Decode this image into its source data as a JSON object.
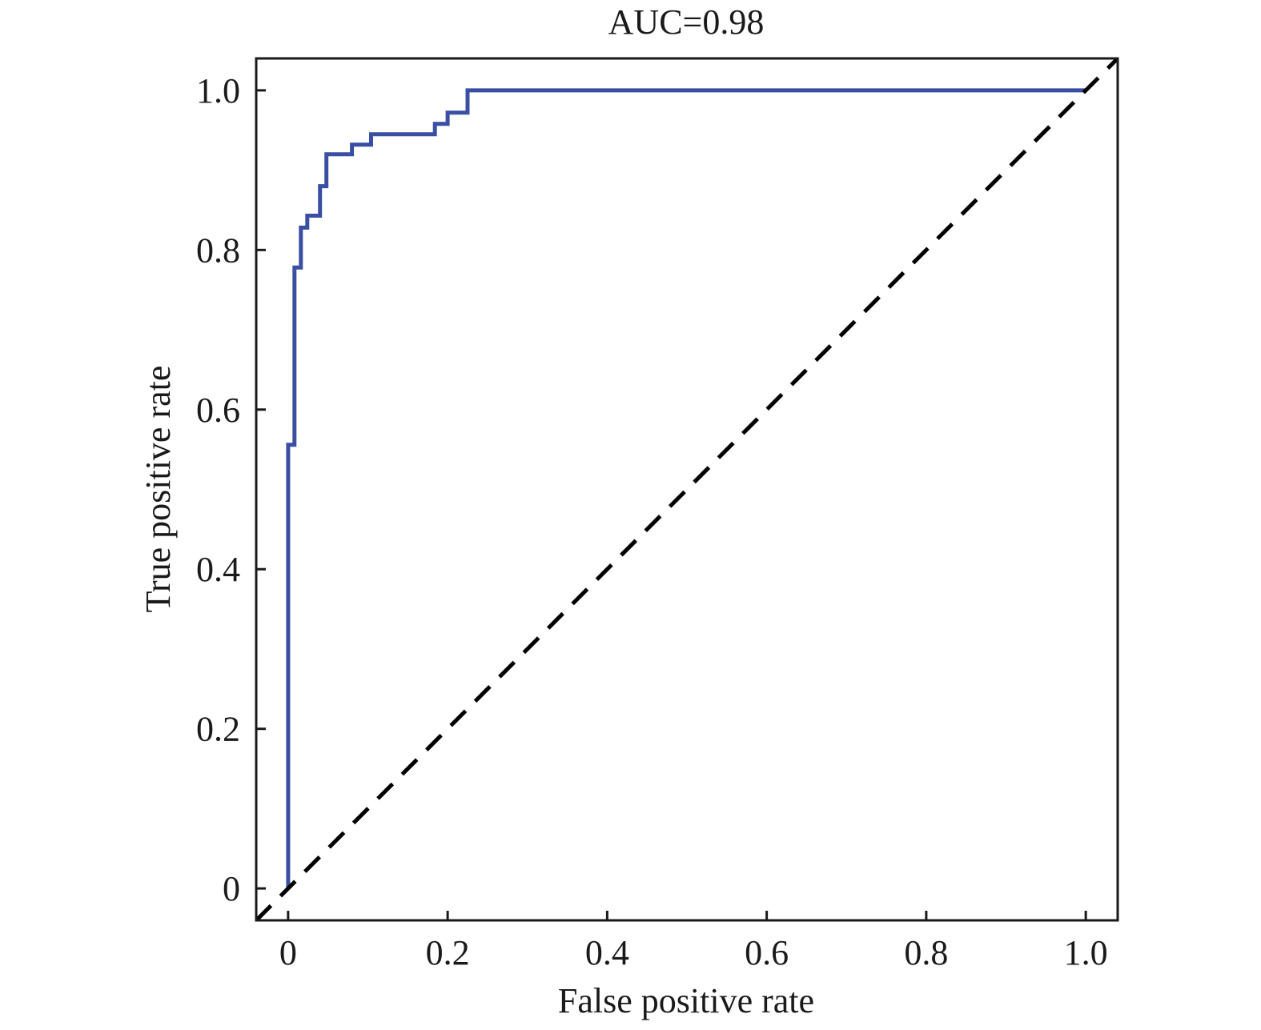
{
  "chart_data": {
    "type": "line",
    "title": "AUC=0.98",
    "xlabel": "False positive rate",
    "ylabel": "True positive rate",
    "xlim": [
      -0.04,
      1.04
    ],
    "ylim": [
      -0.04,
      1.04
    ],
    "x_ticks": [
      {
        "value": 0,
        "label": "0"
      },
      {
        "value": 0.2,
        "label": "0.2"
      },
      {
        "value": 0.4,
        "label": "0.4"
      },
      {
        "value": 0.6,
        "label": "0.6"
      },
      {
        "value": 0.8,
        "label": "0.8"
      },
      {
        "value": 1.0,
        "label": "1.0"
      }
    ],
    "y_ticks": [
      {
        "value": 0,
        "label": "0"
      },
      {
        "value": 0.2,
        "label": "0.2"
      },
      {
        "value": 0.4,
        "label": "0.4"
      },
      {
        "value": 0.6,
        "label": "0.6"
      },
      {
        "value": 0.8,
        "label": "0.8"
      },
      {
        "value": 1.0,
        "label": "1.0"
      }
    ],
    "grid": false,
    "legend": "none",
    "series": [
      {
        "style": "solid",
        "color": "#3a4fa3",
        "x": [
          0,
          0,
          0.008,
          0.008,
          0.016,
          0.016,
          0.024,
          0.024,
          0.04,
          0.04,
          0.048,
          0.048,
          0.08,
          0.08,
          0.104,
          0.104,
          0.184,
          0.184,
          0.2,
          0.2,
          0.225,
          0.225,
          1.0
        ],
        "y": [
          0,
          0.556,
          0.556,
          0.778,
          0.778,
          0.828,
          0.828,
          0.843,
          0.843,
          0.88,
          0.88,
          0.92,
          0.92,
          0.932,
          0.932,
          0.945,
          0.945,
          0.958,
          0.958,
          0.972,
          0.972,
          1.0,
          1.0
        ]
      },
      {
        "style": "dashed",
        "color": "#000000",
        "x": [
          -0.04,
          1.04
        ],
        "y": [
          -0.04,
          1.04
        ]
      }
    ]
  }
}
